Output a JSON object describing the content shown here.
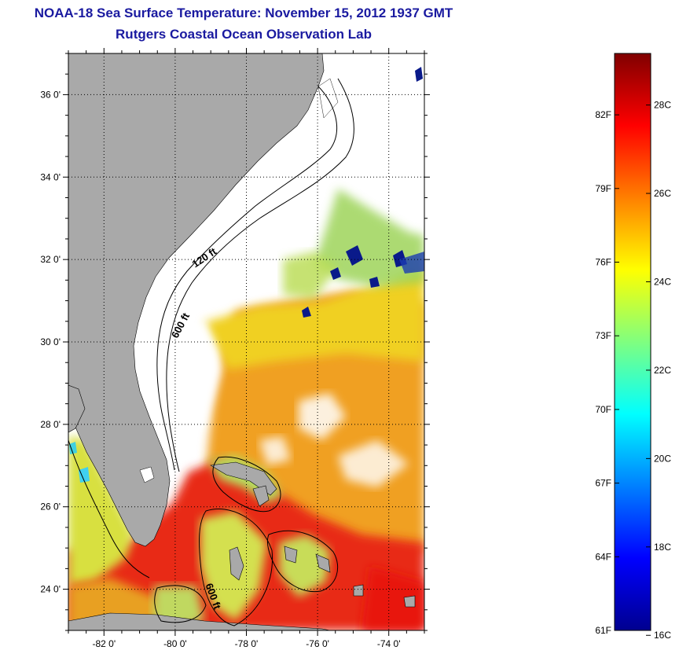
{
  "title": {
    "line1": "NOAA-18 Sea Surface Temperature:  November 15, 2012 1937 GMT",
    "line2": "Rutgers Coastal Ocean Observation Lab"
  },
  "map": {
    "lon_range": [
      -83,
      -73
    ],
    "lat_range": [
      23,
      37
    ],
    "lon_ticks": [
      {
        "value": -82,
        "label": "-82 0'"
      },
      {
        "value": -80,
        "label": "-80 0'"
      },
      {
        "value": -78,
        "label": "-78 0'"
      },
      {
        "value": -76,
        "label": "-76 0'"
      },
      {
        "value": -74,
        "label": "-74 0'"
      }
    ],
    "lat_ticks": [
      {
        "value": 24,
        "label": "24 0'"
      },
      {
        "value": 26,
        "label": "26 0'"
      },
      {
        "value": 28,
        "label": "28 0'"
      },
      {
        "value": 30,
        "label": "30 0'"
      },
      {
        "value": 32,
        "label": "32 0'"
      },
      {
        "value": 34,
        "label": "34 0'"
      },
      {
        "value": 36,
        "label": "36 0'"
      }
    ],
    "grid": "dotted",
    "land_color": "#a9a9a9",
    "contours": [
      {
        "label": "120 ft"
      },
      {
        "label": "600 ft"
      },
      {
        "label": "600 ft"
      }
    ]
  },
  "colorbar": {
    "orientation": "vertical",
    "colormap": "jet",
    "range_f": [
      61,
      84.5
    ],
    "fahrenheit_labels": [
      "82F",
      "79F",
      "76F",
      "73F",
      "70F",
      "67F",
      "64F",
      "61F"
    ],
    "celsius_labels": [
      "28C",
      "26C",
      "24C",
      "22C",
      "20C",
      "18C",
      "16C"
    ]
  }
}
